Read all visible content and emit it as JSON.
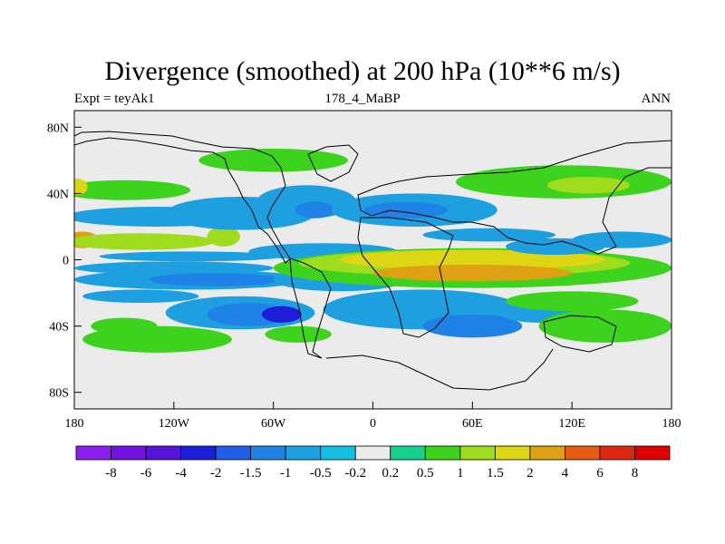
{
  "chart_data": {
    "type": "heatmap",
    "title": "Divergence (smoothed) at 200 hPa (10**6 m/s)",
    "left_string": "Expt = teyAk1",
    "center_string": "178_4_MaBP",
    "right_string": "ANN",
    "x_ticks": [
      {
        "value": -180,
        "label": "180"
      },
      {
        "value": -120,
        "label": "120W"
      },
      {
        "value": -60,
        "label": "60W"
      },
      {
        "value": 0,
        "label": "0"
      },
      {
        "value": 60,
        "label": "60E"
      },
      {
        "value": 120,
        "label": "120E"
      },
      {
        "value": 180,
        "label": "180"
      }
    ],
    "y_ticks": [
      {
        "value": 80,
        "label": "80N"
      },
      {
        "value": 40,
        "label": "40N"
      },
      {
        "value": 0,
        "label": "0"
      },
      {
        "value": -40,
        "label": "40S"
      },
      {
        "value": -80,
        "label": "80S"
      }
    ],
    "xlim": [
      -180,
      180
    ],
    "ylim": [
      -90,
      90
    ],
    "colorbar": {
      "levels": [
        "-8",
        "-6",
        "-4",
        "-2",
        "-1.5",
        "-1",
        "-0.5",
        "-0.2",
        "0.2",
        "0.5",
        "1",
        "1.5",
        "2",
        "4",
        "6",
        "8"
      ],
      "colors": [
        "#8a1ff0",
        "#7013e0",
        "#5614d8",
        "#1e1ed8",
        "#1e5ee8",
        "#1e82e6",
        "#1ea0e0",
        "#14c0e2",
        "#ebebeb",
        "#14d28c",
        "#3cd21e",
        "#a0dc1e",
        "#dcd614",
        "#e0a014",
        "#e65a14",
        "#dc2814",
        "#e00000"
      ]
    },
    "regions": [
      {
        "lon": -150,
        "lat": 42,
        "rx": 40,
        "ry": 6,
        "level": "0.5"
      },
      {
        "lon": -178,
        "lat": 44,
        "rx": 6,
        "ry": 5,
        "level": "1.5"
      },
      {
        "lon": -175,
        "lat": 12,
        "rx": 10,
        "ry": 5,
        "level": "2"
      },
      {
        "lon": -140,
        "lat": 11,
        "rx": 45,
        "ry": 5,
        "level": "1"
      },
      {
        "lon": -90,
        "lat": 14,
        "rx": 10,
        "ry": 6,
        "level": "1"
      },
      {
        "lon": -130,
        "lat": 26,
        "rx": 55,
        "ry": 6,
        "level": "-0.5"
      },
      {
        "lon": -110,
        "lat": 2,
        "rx": 55,
        "ry": 3,
        "level": "-0.5"
      },
      {
        "lon": -120,
        "lat": -5,
        "rx": 60,
        "ry": 4,
        "level": "-0.5"
      },
      {
        "lon": -110,
        "lat": -12,
        "rx": 70,
        "ry": 6,
        "level": "-0.5"
      },
      {
        "lon": -95,
        "lat": -12,
        "rx": 40,
        "ry": 4,
        "level": "-1"
      },
      {
        "lon": -140,
        "lat": -22,
        "rx": 35,
        "ry": 4,
        "level": "-0.5"
      },
      {
        "lon": -80,
        "lat": -32,
        "rx": 45,
        "ry": 10,
        "level": "-0.5"
      },
      {
        "lon": -75,
        "lat": -33,
        "rx": 25,
        "ry": 7,
        "level": "-1"
      },
      {
        "lon": -55,
        "lat": -33,
        "rx": 12,
        "ry": 5,
        "level": "-2"
      },
      {
        "lon": -150,
        "lat": -40,
        "rx": 20,
        "ry": 5,
        "level": "0.5"
      },
      {
        "lon": -130,
        "lat": -48,
        "rx": 45,
        "ry": 8,
        "level": "0.5"
      },
      {
        "lon": -80,
        "lat": 28,
        "rx": 45,
        "ry": 10,
        "level": "-0.5"
      },
      {
        "lon": -40,
        "lat": 35,
        "rx": 30,
        "ry": 10,
        "level": "-0.5"
      },
      {
        "lon": -35,
        "lat": 30,
        "rx": 12,
        "ry": 5,
        "level": "-1"
      },
      {
        "lon": 25,
        "lat": 30,
        "rx": 50,
        "ry": 10,
        "level": "-0.5"
      },
      {
        "lon": 20,
        "lat": 30,
        "rx": 25,
        "ry": 5,
        "level": "-1"
      },
      {
        "lon": -30,
        "lat": 5,
        "rx": 45,
        "ry": 5,
        "level": "-0.5"
      },
      {
        "lon": -20,
        "lat": -12,
        "rx": 40,
        "ry": 7,
        "level": "-0.5"
      },
      {
        "lon": 30,
        "lat": -30,
        "rx": 60,
        "ry": 12,
        "level": "-0.5"
      },
      {
        "lon": 60,
        "lat": -40,
        "rx": 30,
        "ry": 7,
        "level": "-1"
      },
      {
        "lon": 100,
        "lat": -30,
        "rx": 25,
        "ry": 8,
        "level": "-0.5"
      },
      {
        "lon": 60,
        "lat": -5,
        "rx": 120,
        "ry": 12,
        "level": "0.5"
      },
      {
        "lon": 55,
        "lat": -2,
        "rx": 100,
        "ry": 8,
        "level": "1"
      },
      {
        "lon": 60,
        "lat": 0,
        "rx": 80,
        "ry": 6,
        "level": "1.5"
      },
      {
        "lon": 60,
        "lat": -8,
        "rx": 60,
        "ry": 5,
        "level": "2"
      },
      {
        "lon": 110,
        "lat": 8,
        "rx": 30,
        "ry": 5,
        "level": "-0.5"
      },
      {
        "lon": 120,
        "lat": -25,
        "rx": 40,
        "ry": 6,
        "level": "0.5"
      },
      {
        "lon": 140,
        "lat": -40,
        "rx": 40,
        "ry": 10,
        "level": "0.5"
      },
      {
        "lon": -45,
        "lat": -45,
        "rx": 20,
        "ry": 5,
        "level": "0.5"
      },
      {
        "lon": 115,
        "lat": 47,
        "rx": 65,
        "ry": 10,
        "level": "0.5"
      },
      {
        "lon": 130,
        "lat": 45,
        "rx": 25,
        "ry": 5,
        "level": "1"
      },
      {
        "lon": -60,
        "lat": 60,
        "rx": 45,
        "ry": 7,
        "level": "0.5"
      },
      {
        "lon": 70,
        "lat": 15,
        "rx": 40,
        "ry": 4,
        "level": "-0.5"
      },
      {
        "lon": 150,
        "lat": 12,
        "rx": 30,
        "ry": 5,
        "level": "-0.5"
      }
    ]
  }
}
